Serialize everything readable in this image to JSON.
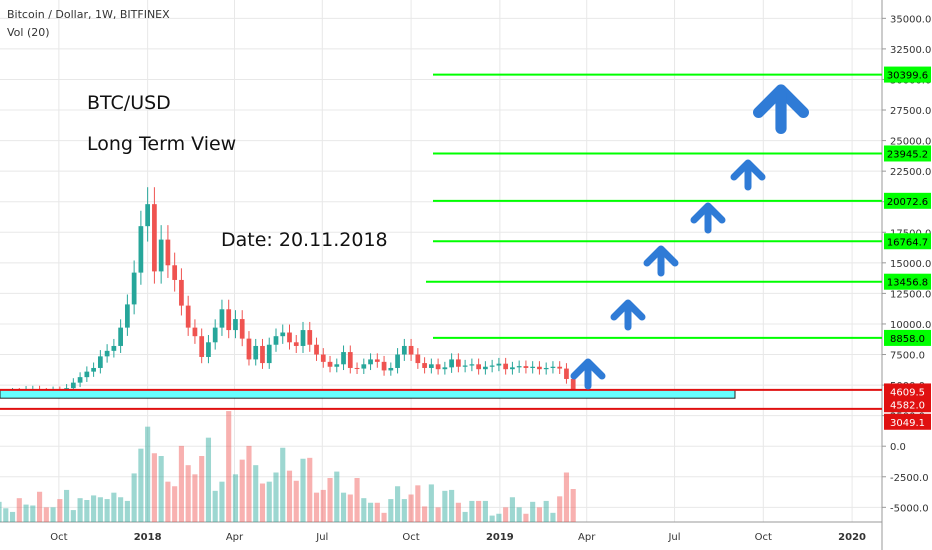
{
  "header": {
    "symbol": "Bitcoin / Dollar, 1W, BITFINEX",
    "volume": "Vol (20)"
  },
  "annotations": {
    "pair": "BTC/USD",
    "view": "Long Term View",
    "date": "Date: 20.11.2018"
  },
  "colors": {
    "up": "#26a69a",
    "down": "#ef5350",
    "level": "#00ff00",
    "zone_fill": "#66ffff",
    "zone_line": "#e01010",
    "arrow": "#2f7bd6",
    "grid": "#e8e8e8"
  },
  "chart_data": {
    "type": "candlestick",
    "title": "Bitcoin / Dollar, 1W, BITFINEX",
    "price_ticks": [
      "35000.0",
      "32500.0",
      "30000.0",
      "27500.0",
      "25000.0",
      "22500.0",
      "20000.0",
      "17500.0",
      "15000.0",
      "12500.0",
      "10000.0",
      "7500.0",
      "5000.0",
      "2500.0",
      "0.0",
      "-2500.0",
      "-5000.0"
    ],
    "price_tick_values": [
      35000,
      32500,
      30000,
      27500,
      25000,
      22500,
      20000,
      17500,
      15000,
      12500,
      10000,
      7500,
      5000,
      2500,
      0,
      -2500,
      -5000
    ],
    "ylim": [
      -6200,
      36500
    ],
    "x_ticks": [
      {
        "label": "Oct",
        "date": "2017-10-01"
      },
      {
        "label": "2018",
        "date": "2018-01-01"
      },
      {
        "label": "Apr",
        "date": "2018-04-01"
      },
      {
        "label": "Jul",
        "date": "2018-07-01"
      },
      {
        "label": "Oct",
        "date": "2018-10-01"
      },
      {
        "label": "2019",
        "date": "2019-01-01"
      },
      {
        "label": "Apr",
        "date": "2019-04-01"
      },
      {
        "label": "Jul",
        "date": "2019-07-01"
      },
      {
        "label": "Oct",
        "date": "2019-10-01"
      },
      {
        "label": "2020",
        "date": "2020-01-01"
      }
    ],
    "price_closes": [
      3300,
      3450,
      3650,
      4050,
      4250,
      4300,
      4450,
      4380,
      4600,
      4620,
      4450,
      4330,
      4560,
      4400,
      4750,
      5200,
      5650,
      6100,
      6400,
      7350,
      7800,
      8200,
      9700,
      11600,
      14200,
      18000,
      19800,
      14300,
      16900,
      14800,
      13600,
      11500,
      9700,
      9000,
      7300,
      8500,
      9700,
      11200,
      9500,
      10400,
      8800,
      7100,
      8200,
      6800,
      8300,
      9000,
      9300,
      8500,
      8200,
      9500,
      8300,
      7500,
      6900,
      6500,
      6700,
      7700,
      6400,
      6350,
      6700,
      7100,
      6900,
      6200,
      6400,
      7500,
      8200,
      7500,
      6800,
      6400,
      6700,
      6300,
      6450,
      7100,
      6500,
      6600,
      6700,
      6300,
      6500,
      6600,
      6750,
      6300,
      6450,
      6550,
      6400,
      6500,
      6300,
      6400,
      6500,
      6350,
      5500,
      4600
    ],
    "volume_values": [
      1400,
      650,
      900,
      1500,
      1100,
      750,
      550,
      1300,
      950,
      900,
      1650,
      800,
      800,
      1250,
      1750,
      650,
      1300,
      1200,
      1450,
      1350,
      1250,
      1600,
      1350,
      1150,
      2650,
      4000,
      5200,
      3750,
      3600,
      2200,
      1950,
      4150,
      3100,
      2600,
      3600,
      4600,
      1700,
      2200,
      6050,
      2600,
      3400,
      4150,
      3100,
      2100,
      2200,
      2700,
      4050,
      2800,
      2250,
      3450,
      3500,
      1600,
      1750,
      2400,
      2750,
      1600,
      1500,
      2400,
      1300,
      1050,
      1050,
      500,
      1250,
      1950,
      1250,
      1500,
      2000,
      850,
      2050,
      800,
      1700,
      1750,
      1050,
      550,
      1150,
      1150,
      1150,
      350,
      450,
      800,
      1350,
      800,
      450,
      1100,
      800,
      1150,
      500,
      1400,
      2700,
      1800
    ],
    "levels": [
      {
        "label": "30399.6",
        "value": 30399.6
      },
      {
        "label": "23945.2",
        "value": 23945.2
      },
      {
        "label": "20072.6",
        "value": 20072.6
      },
      {
        "label": "16764.7",
        "value": 16764.7
      },
      {
        "label": "13456.8",
        "value": 13456.8
      },
      {
        "label": "8858.0",
        "value": 8858.0
      }
    ],
    "support_zone": {
      "top_label": "4609.5",
      "mid_label": "4582.0",
      "low_label": "3049.1",
      "top": 4609.5,
      "mid": 4582.0,
      "low": 3049.1
    }
  }
}
